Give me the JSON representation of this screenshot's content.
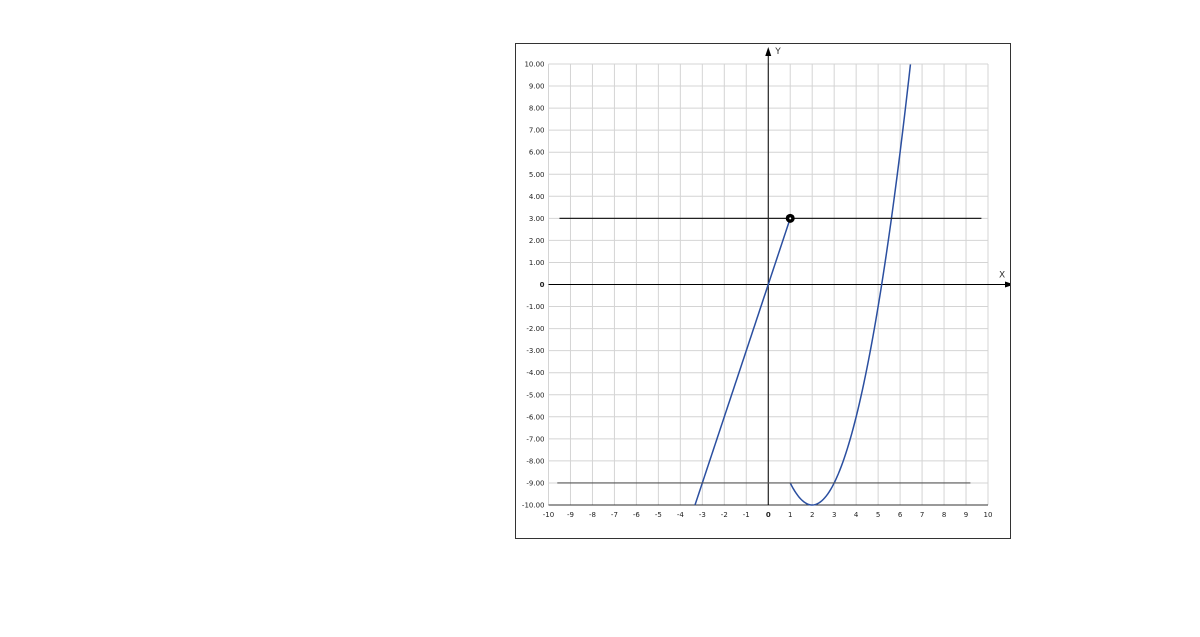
{
  "chart_data": {
    "type": "line",
    "xlabel": "X",
    "ylabel": "Y",
    "xlim": [
      -10,
      10
    ],
    "ylim": [
      -10,
      10
    ],
    "grid": true,
    "x_ticks": [
      "-10",
      "-9",
      "-8",
      "-7",
      "-6",
      "-5",
      "-4",
      "-3",
      "-2",
      "-1",
      "0",
      "1",
      "2",
      "3",
      "4",
      "5",
      "6",
      "7",
      "8",
      "9",
      "10"
    ],
    "y_ticks": [
      "10.00",
      "9.00",
      "8.00",
      "7.00",
      "6.00",
      "5.00",
      "4.00",
      "3.00",
      "2.00",
      "1.00",
      "0",
      "-1.00",
      "-2.00",
      "-3.00",
      "-4.00",
      "-5.00",
      "-6.00",
      "-7.00",
      "-8.00",
      "-9.00",
      "-10.00"
    ],
    "series": [
      {
        "kind": "line",
        "expression": "y = 3x",
        "x_range": [
          -3.333,
          1
        ],
        "color": "#2b4fa0"
      },
      {
        "kind": "curve",
        "expression": "y = (x-2)^2 - 10",
        "x_range": [
          1,
          6.47
        ],
        "color": "#2b4fa0"
      },
      {
        "kind": "horizontal",
        "y": 3,
        "x_range": [
          -9.5,
          9.7
        ],
        "color": "#222222"
      },
      {
        "kind": "horizontal",
        "y": -9,
        "x_range": [
          -9.6,
          9.2
        ],
        "color": "#555555"
      }
    ],
    "points": [
      {
        "x": 1,
        "y": 3,
        "color": "#000000"
      }
    ]
  }
}
